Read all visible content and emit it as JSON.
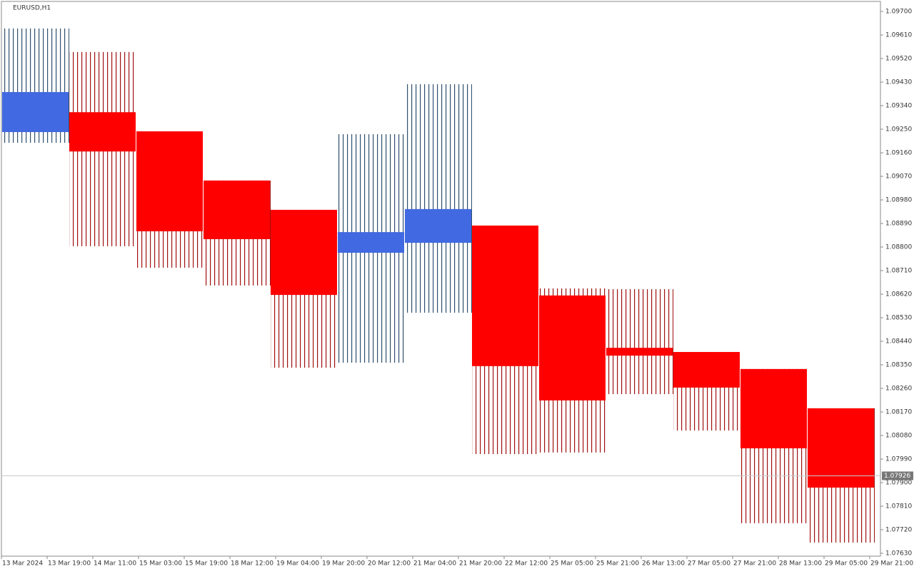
{
  "chart_data": {
    "type": "candlestick",
    "title": "EURUSD,H1",
    "open": [
      1.09239,
      1.09315,
      1.09242,
      1.09054,
      1.08942,
      1.08778,
      1.08816,
      1.08882,
      1.08615,
      1.08415,
      1.08399,
      1.08334,
      1.08184
    ],
    "high": [
      1.09635,
      1.09545,
      1.09242,
      1.09054,
      1.08942,
      1.09231,
      1.09422,
      1.08882,
      1.08642,
      1.08639,
      1.08399,
      1.08334,
      1.08184
    ],
    "low": [
      1.09198,
      1.08803,
      1.08721,
      1.08653,
      1.08339,
      1.08358,
      1.08549,
      1.08009,
      1.08015,
      1.08238,
      1.08099,
      1.07745,
      1.07671
    ],
    "close": [
      1.09392,
      1.09165,
      1.0886,
      1.0883,
      1.08617,
      1.08857,
      1.08945,
      1.08345,
      1.08214,
      1.08385,
      1.08263,
      1.08031,
      1.07881
    ],
    "up_color": "#4169e1",
    "down_color": "#ff0000",
    "ylim": [
      1.0763,
      1.097
    ],
    "yticks": [
      {
        "value": 1.097,
        "label": "1.09700"
      },
      {
        "value": 1.0961,
        "label": "1.09610"
      },
      {
        "value": 1.0952,
        "label": "1.09520"
      },
      {
        "value": 1.0943,
        "label": "1.09430"
      },
      {
        "value": 1.0934,
        "label": "1.09340"
      },
      {
        "value": 1.0925,
        "label": "1.09250"
      },
      {
        "value": 1.0916,
        "label": "1.09160"
      },
      {
        "value": 1.0907,
        "label": "1.09070"
      },
      {
        "value": 1.0898,
        "label": "1.08980"
      },
      {
        "value": 1.0889,
        "label": "1.08890"
      },
      {
        "value": 1.088,
        "label": "1.08800"
      },
      {
        "value": 1.0871,
        "label": "1.08710"
      },
      {
        "value": 1.0862,
        "label": "1.08620"
      },
      {
        "value": 1.0853,
        "label": "1.08530"
      },
      {
        "value": 1.0844,
        "label": "1.08440"
      },
      {
        "value": 1.0835,
        "label": "1.08350"
      },
      {
        "value": 1.0826,
        "label": "1.08260"
      },
      {
        "value": 1.0817,
        "label": "1.08170"
      },
      {
        "value": 1.0808,
        "label": "1.08080"
      },
      {
        "value": 1.0799,
        "label": "1.07990"
      },
      {
        "value": 1.079,
        "label": "1.07900"
      },
      {
        "value": 1.0781,
        "label": "1.07810"
      },
      {
        "value": 1.0772,
        "label": "1.07720"
      },
      {
        "value": 1.0763,
        "label": "1.07630"
      }
    ],
    "xlabels": [
      "13 Mar 2024",
      "13 Mar 19:00",
      "14 Mar 11:00",
      "15 Mar 03:00",
      "15 Mar 19:00",
      "18 Mar 12:00",
      "19 Mar 04:00",
      "19 Mar 20:00",
      "20 Mar 12:00",
      "21 Mar 04:00",
      "21 Mar 20:00",
      "22 Mar 12:00",
      "25 Mar 05:00",
      "25 Mar 21:00",
      "26 Mar 13:00",
      "27 Mar 05:00",
      "27 Mar 21:00",
      "28 Mar 13:00",
      "29 Mar 05:00",
      "29 Mar 21:00"
    ],
    "last_price": {
      "value": 1.07926,
      "label": "1.07926"
    }
  }
}
